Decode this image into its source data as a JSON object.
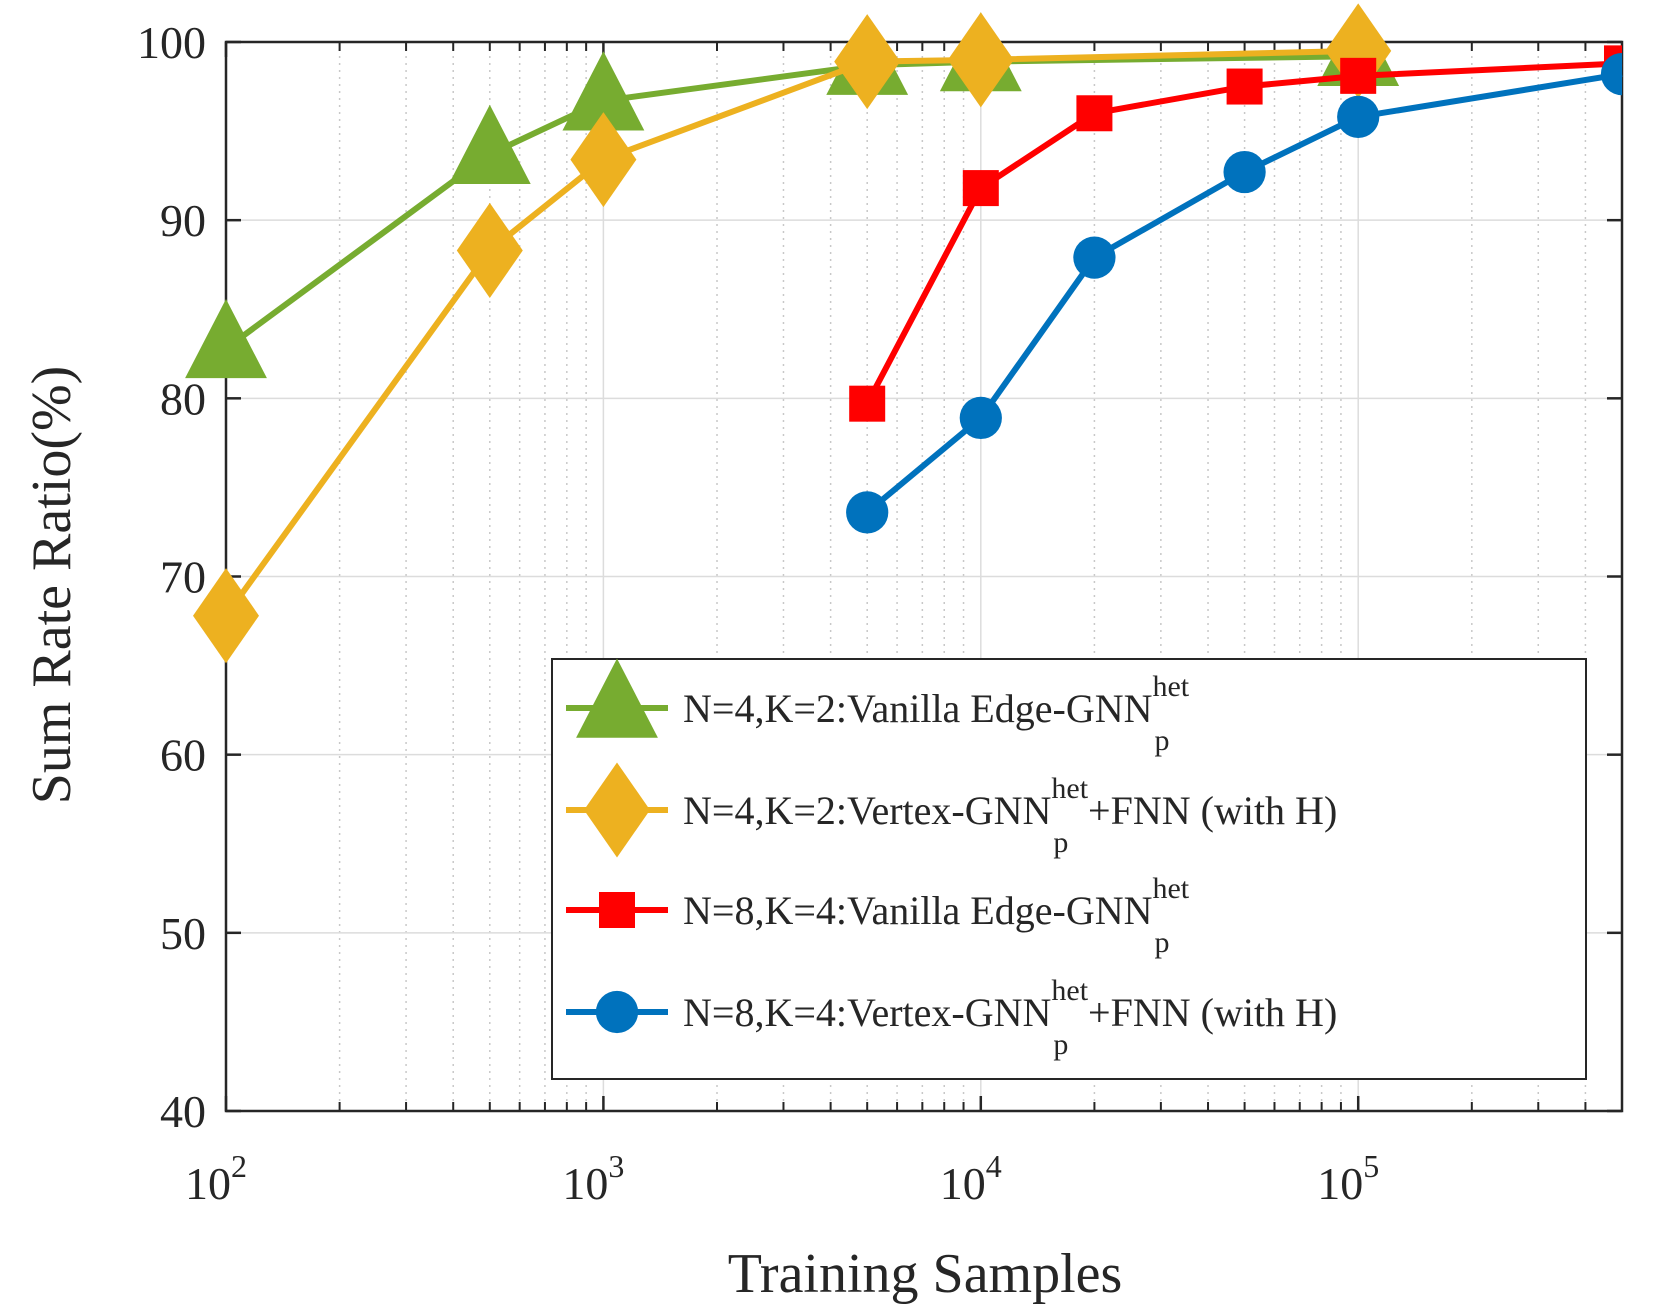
{
  "chart_data": {
    "type": "line",
    "title": "",
    "xlabel": "Training Samples",
    "ylabel": "Sum Rate Ratio(%)",
    "xscale": "log",
    "xlim": [
      100,
      500000
    ],
    "ylim": [
      40,
      100
    ],
    "yticks": [
      40,
      50,
      60,
      70,
      80,
      90,
      100
    ],
    "xticks": [
      {
        "value": 100,
        "base": "10",
        "exp": "2"
      },
      {
        "value": 1000,
        "base": "10",
        "exp": "3"
      },
      {
        "value": 10000,
        "base": "10",
        "exp": "4"
      },
      {
        "value": 100000,
        "base": "10",
        "exp": "5"
      }
    ],
    "grid": true,
    "legend_position": "bottom-right",
    "series": [
      {
        "name": "N=4,K=2:Vanilla Edge-GNN_p^het",
        "label": {
          "main": "N=4,K=2:Vanilla Edge-GNN",
          "sup": "het",
          "sub": "p",
          "tail": ""
        },
        "color": "#77AC30",
        "marker": "triangle",
        "x": [
          100,
          500,
          1000,
          5000,
          10000,
          100000
        ],
        "y": [
          82.8,
          93.7,
          96.7,
          98.7,
          98.9,
          99.2
        ]
      },
      {
        "name": "N=4,K=2:Vertex-GNN_p^het+FNN (with H)",
        "label": {
          "main": "N=4,K=2:Vertex-GNN",
          "sup": "het",
          "sub": "p",
          "tail": "+FNN (with H)"
        },
        "color": "#EDB120",
        "marker": "diamond",
        "x": [
          100,
          500,
          1000,
          5000,
          10000,
          100000
        ],
        "y": [
          67.8,
          88.3,
          93.4,
          98.9,
          99.0,
          99.5
        ]
      },
      {
        "name": "N=8,K=4:Vanilla Edge-GNN_p^het",
        "label": {
          "main": "N=8,K=4:Vanilla Edge-GNN",
          "sup": "het",
          "sub": "p",
          "tail": ""
        },
        "color": "#FF0000",
        "marker": "square",
        "x": [
          5000,
          10000,
          20000,
          50000,
          100000,
          500000
        ],
        "y": [
          79.7,
          91.8,
          96.0,
          97.5,
          98.1,
          98.8
        ]
      },
      {
        "name": "N=8,K=4:Vertex-GNN_p^het+FNN (with H)",
        "label": {
          "main": "N=8,K=4:Vertex-GNN",
          "sup": "het",
          "sub": "p",
          "tail": "+FNN (with H)"
        },
        "color": "#0072BD",
        "marker": "circle",
        "x": [
          5000,
          10000,
          20000,
          50000,
          100000,
          500000
        ],
        "y": [
          73.6,
          78.9,
          87.9,
          92.7,
          95.8,
          98.2
        ]
      }
    ]
  }
}
